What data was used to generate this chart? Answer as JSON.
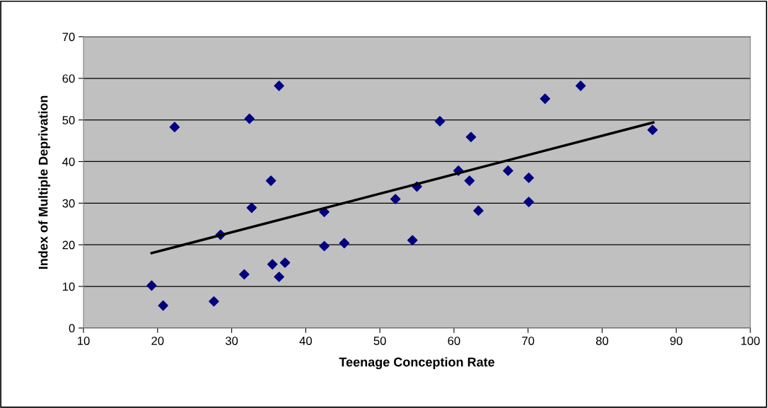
{
  "chart_data": {
    "type": "scatter",
    "xlabel": "Teenage Conception Rate",
    "ylabel": "Index of Multiple Deprivation",
    "xlim": [
      10,
      100
    ],
    "xticks": [
      10,
      20,
      30,
      40,
      50,
      60,
      70,
      80,
      90,
      100
    ],
    "ylim": [
      0,
      70
    ],
    "yticks": [
      0,
      10,
      20,
      30,
      40,
      50,
      60,
      70
    ],
    "grid": "y",
    "legend": false,
    "series": [
      {
        "color": "#000080",
        "marker": "diamond",
        "x": [
          19.2,
          20.75,
          22.3,
          27.6,
          28.5,
          31.7,
          32.4,
          32.7,
          35.3,
          35.5,
          36.4,
          36.4,
          37.2,
          42.5,
          42.5,
          45.2,
          52.1,
          54.4,
          55.0,
          58.1,
          60.6,
          62.1,
          62.3,
          63.3,
          67.3,
          70.1,
          70.1,
          72.3,
          77.1,
          86.8
        ],
        "values": [
          10.2,
          5.4,
          48.3,
          6.4,
          22.4,
          12.9,
          50.3,
          28.9,
          35.4,
          15.3,
          58.2,
          12.3,
          15.7,
          27.9,
          19.7,
          20.4,
          31.0,
          21.1,
          34.0,
          49.7,
          37.8,
          35.4,
          45.9,
          28.2,
          37.8,
          36.1,
          30.3,
          55.1,
          58.2,
          47.6
        ]
      },
      {
        "type": "line",
        "color": "#000000",
        "marker": "none",
        "line_style": "solid",
        "x": [
          19.2,
          86.9
        ],
        "values": [
          18.0,
          49.4
        ]
      }
    ]
  }
}
